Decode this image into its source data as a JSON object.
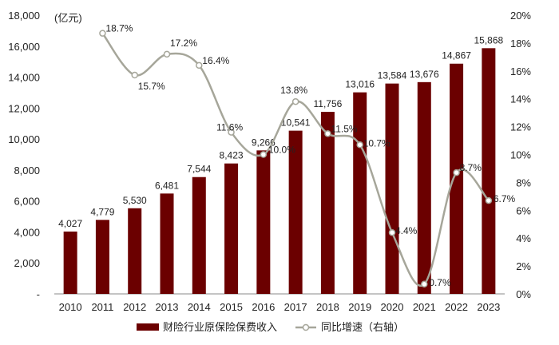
{
  "chart_data": {
    "type": "bar",
    "categories": [
      "2010",
      "2011",
      "2012",
      "2013",
      "2014",
      "2015",
      "2016",
      "2017",
      "2018",
      "2019",
      "2020",
      "2021",
      "2022",
      "2023"
    ],
    "series": [
      {
        "name": "财险行业原保险保费收入",
        "type": "bar",
        "axis": "left",
        "color": "#6b0000",
        "values": [
          4027,
          4779,
          5530,
          6481,
          7544,
          8423,
          9266,
          10541,
          11756,
          13016,
          13584,
          13676,
          14867,
          15868
        ],
        "labels": [
          "4,027",
          "4,779",
          "5,530",
          "6,481",
          "7,544",
          "8,423",
          "9,266",
          "10,541",
          "11,756",
          "13,016",
          "13,584",
          "13,676",
          "14,867",
          "15,868"
        ]
      },
      {
        "name": "同比增速（右轴）",
        "type": "line",
        "axis": "right",
        "color": "#a6a69a",
        "values": [
          null,
          18.7,
          15.7,
          17.2,
          16.4,
          11.6,
          10.0,
          13.8,
          11.5,
          10.7,
          4.4,
          0.7,
          8.7,
          6.7
        ],
        "labels": [
          "",
          "18.7%",
          "15.7%",
          "17.2%",
          "16.4%",
          "11.6%",
          "10.0%",
          "13.8%",
          "11.5%",
          "10.7%",
          "4.4%",
          "0.7%",
          "8.7%",
          "6.7%"
        ]
      }
    ],
    "ylabel": "(亿元)",
    "ylim": [
      0,
      18000
    ],
    "y_ticks": [
      0,
      2000,
      4000,
      6000,
      8000,
      10000,
      12000,
      14000,
      16000,
      18000
    ],
    "y_tick_labels": [
      "-",
      "2,000",
      "4,000",
      "6,000",
      "8,000",
      "10,000",
      "12,000",
      "14,000",
      "16,000",
      "18,000"
    ],
    "y2lim": [
      0,
      20
    ],
    "y2_ticks": [
      0,
      2,
      4,
      6,
      8,
      10,
      12,
      14,
      16,
      18,
      20
    ],
    "y2_tick_labels": [
      "0%",
      "2%",
      "4%",
      "6%",
      "8%",
      "10%",
      "12%",
      "14%",
      "16%",
      "18%",
      "20%"
    ],
    "grid": false,
    "legend_position": "bottom-center"
  }
}
